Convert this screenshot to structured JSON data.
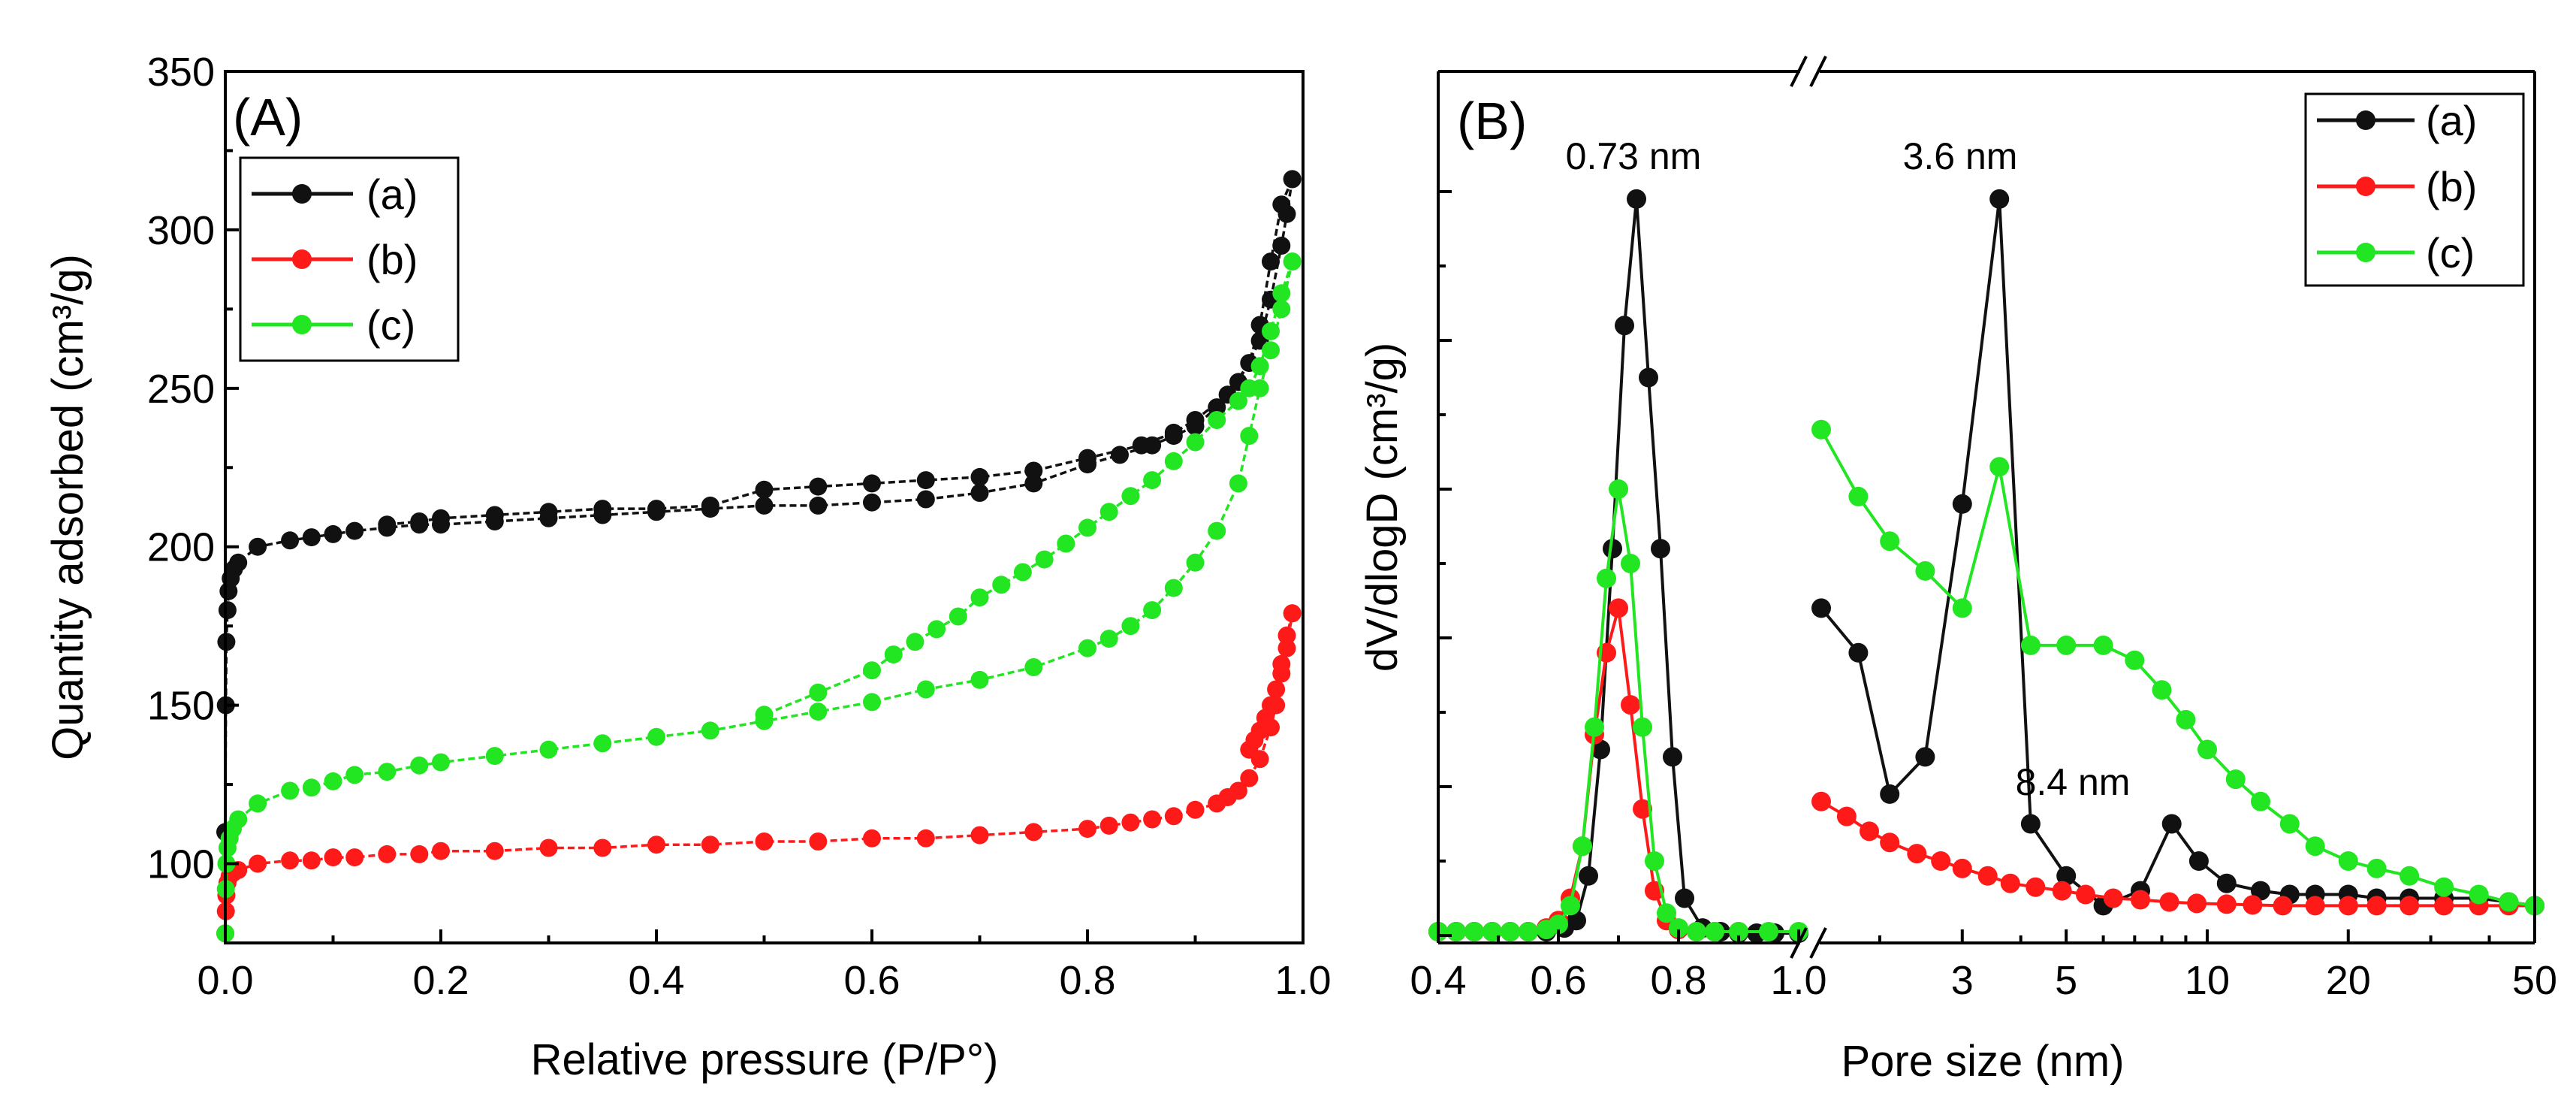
{
  "figure": {
    "panels": [
      "(A)",
      "(B)"
    ]
  },
  "colors": {
    "a": "#111111",
    "b": "#ff1a1a",
    "c": "#22e622"
  },
  "chart_data": [
    {
      "type": "line",
      "panel_label": "(A)",
      "title": "",
      "xlabel": "Relative pressure (P/P°)",
      "ylabel": "Quantity adsorbed (cm³/g)",
      "xlim": [
        0.0,
        1.0
      ],
      "ylim": [
        75,
        350
      ],
      "xticks": [
        0.0,
        0.2,
        0.4,
        0.6,
        0.8,
        1.0
      ],
      "xtick_labels": [
        "0.0",
        "0.2",
        "0.4",
        "0.6",
        "0.8",
        "1.0"
      ],
      "yticks": [
        100,
        150,
        200,
        250,
        300,
        350
      ],
      "ytick_labels": [
        "100",
        "150",
        "200",
        "250",
        "300",
        "350"
      ],
      "legend": {
        "position": "top-left",
        "entries": [
          "(a)",
          "(b)",
          "(c)"
        ]
      },
      "series": [
        {
          "name": "(a)",
          "branches": [
            {
              "x": [
                0.0,
                0.0005,
                0.001,
                0.002,
                0.003,
                0.005,
                0.008,
                0.012,
                0.03,
                0.06,
                0.08,
                0.1,
                0.12,
                0.15,
                0.18,
                0.2,
                0.25,
                0.3,
                0.35,
                0.4,
                0.45,
                0.5,
                0.55,
                0.6,
                0.65,
                0.7,
                0.75,
                0.8,
                0.83,
                0.86,
                0.88,
                0.9,
                0.92,
                0.94,
                0.96,
                0.97,
                0.98,
                0.985,
                0.99
              ],
              "y": [
                110,
                150,
                170,
                180,
                186,
                190,
                193,
                195,
                200,
                202,
                203,
                204,
                205,
                206,
                207,
                207,
                208,
                209,
                210,
                211,
                212,
                213,
                213,
                214,
                215,
                217,
                220,
                226,
                229,
                232,
                235,
                238,
                244,
                252,
                265,
                278,
                295,
                305,
                316
              ]
            },
            {
              "x": [
                0.99,
                0.98,
                0.97,
                0.96,
                0.95,
                0.93,
                0.9,
                0.88,
                0.85,
                0.8,
                0.75,
                0.7,
                0.65,
                0.6,
                0.55,
                0.5,
                0.45,
                0.4,
                0.35,
                0.3,
                0.25,
                0.2,
                0.18,
                0.15
              ],
              "y": [
                316,
                308,
                290,
                270,
                258,
                248,
                240,
                236,
                232,
                228,
                224,
                222,
                221,
                220,
                219,
                218,
                213,
                212,
                212,
                211,
                210,
                209,
                208,
                207
              ]
            }
          ]
        },
        {
          "name": "(b)",
          "branches": [
            {
              "x": [
                0.0,
                0.0005,
                0.001,
                0.002,
                0.004,
                0.007,
                0.012,
                0.03,
                0.06,
                0.08,
                0.1,
                0.12,
                0.15,
                0.18,
                0.2,
                0.25,
                0.3,
                0.35,
                0.4,
                0.45,
                0.5,
                0.55,
                0.6,
                0.65,
                0.7,
                0.75,
                0.8,
                0.82,
                0.84,
                0.86,
                0.88,
                0.9,
                0.92,
                0.93,
                0.94,
                0.95,
                0.96,
                0.97,
                0.975,
                0.98,
                0.985,
                0.99
              ],
              "y": [
                78,
                85,
                90,
                94,
                96,
                97,
                98,
                100,
                101,
                101,
                102,
                102,
                103,
                103,
                104,
                104,
                105,
                105,
                106,
                106,
                107,
                107,
                108,
                108,
                109,
                110,
                111,
                112,
                113,
                114,
                115,
                117,
                119,
                121,
                123,
                127,
                133,
                143,
                150,
                160,
                168,
                179
              ]
            },
            {
              "x": [
                0.99,
                0.985,
                0.98,
                0.975,
                0.97,
                0.965,
                0.96,
                0.955,
                0.95
              ],
              "y": [
                179,
                172,
                163,
                155,
                150,
                146,
                142,
                139,
                136
              ]
            }
          ]
        },
        {
          "name": "(c)",
          "branches": [
            {
              "x": [
                0.0,
                0.0005,
                0.001,
                0.002,
                0.004,
                0.007,
                0.012,
                0.03,
                0.06,
                0.08,
                0.1,
                0.12,
                0.15,
                0.18,
                0.2,
                0.25,
                0.3,
                0.35,
                0.4,
                0.45,
                0.5,
                0.55,
                0.6,
                0.65,
                0.7,
                0.75,
                0.8,
                0.82,
                0.84,
                0.86,
                0.88,
                0.9,
                0.92,
                0.94,
                0.95,
                0.96,
                0.97,
                0.98,
                0.99
              ],
              "y": [
                78,
                92,
                100,
                105,
                108,
                111,
                114,
                119,
                123,
                124,
                126,
                128,
                129,
                131,
                132,
                134,
                136,
                138,
                140,
                142,
                145,
                148,
                151,
                155,
                158,
                162,
                168,
                171,
                175,
                180,
                187,
                195,
                205,
                220,
                235,
                250,
                262,
                275,
                290
              ]
            },
            {
              "x": [
                0.99,
                0.98,
                0.97,
                0.96,
                0.95,
                0.94,
                0.92,
                0.9,
                0.88,
                0.86,
                0.84,
                0.82,
                0.8,
                0.78,
                0.76,
                0.74,
                0.72,
                0.7,
                0.68,
                0.66,
                0.64,
                0.62,
                0.6,
                0.55,
                0.5
              ],
              "y": [
                290,
                280,
                268,
                257,
                250,
                246,
                240,
                233,
                227,
                221,
                216,
                211,
                206,
                201,
                196,
                192,
                188,
                184,
                178,
                174,
                170,
                166,
                161,
                154,
                147
              ]
            }
          ]
        }
      ]
    },
    {
      "type": "line",
      "panel_label": "(B)",
      "title": "",
      "xlabel": "Pore size (nm)",
      "ylabel": "dV/dlogD (cm³/g)",
      "x_axis": "broken: linear 0.4–1.0 nm, then log 1.5–50 nm",
      "xlim_left": [
        0.4,
        1.0
      ],
      "xlim_right": [
        1.5,
        50
      ],
      "ylim": [
        0,
        1
      ],
      "xticks_left": [
        0.4,
        0.6,
        0.8,
        1.0
      ],
      "xtick_labels_left": [
        "0.4",
        "0.6",
        "0.8",
        "1.0"
      ],
      "xticks_right": [
        3,
        5,
        10,
        20,
        50
      ],
      "xtick_labels_right": [
        "3",
        "5",
        "10",
        "20",
        "50"
      ],
      "y_tick_labels_shown": false,
      "legend": {
        "position": "top-right",
        "entries": [
          "(a)",
          "(b)",
          "(c)"
        ]
      },
      "annotations": [
        {
          "text": "0.73 nm",
          "x": 0.73,
          "y": 1.0
        },
        {
          "text": "3.6 nm",
          "x": 3.6,
          "y": 1.0
        },
        {
          "text": "8.4 nm",
          "x": 8.4,
          "y": 0.17
        }
      ],
      "series": [
        {
          "name": "(a)",
          "left": {
            "x": [
              0.4,
              0.43,
              0.46,
              0.49,
              0.52,
              0.55,
              0.58,
              0.61,
              0.63,
              0.65,
              0.67,
              0.69,
              0.71,
              0.73,
              0.75,
              0.77,
              0.79,
              0.81,
              0.84,
              0.87,
              0.9,
              0.93,
              0.96,
              1.0
            ],
            "y": [
              0.005,
              0.005,
              0.005,
              0.005,
              0.005,
              0.005,
              0.005,
              0.01,
              0.02,
              0.08,
              0.25,
              0.52,
              0.82,
              0.99,
              0.75,
              0.52,
              0.24,
              0.05,
              0.01,
              0.005,
              0.003,
              0.003,
              0.003,
              0.003
            ]
          },
          "right": {
            "x": [
              1.5,
              1.8,
              2.1,
              2.5,
              3.0,
              3.6,
              4.2,
              5.0,
              6.0,
              7.2,
              8.4,
              9.6,
              11,
              13,
              15,
              17,
              20,
              23,
              27,
              32,
              38,
              44,
              50
            ],
            "y": [
              0.44,
              0.38,
              0.19,
              0.24,
              0.58,
              0.99,
              0.15,
              0.08,
              0.04,
              0.06,
              0.15,
              0.1,
              0.07,
              0.06,
              0.055,
              0.055,
              0.055,
              0.05,
              0.05,
              0.05,
              0.05,
              0.045,
              0.04
            ]
          }
        },
        {
          "name": "(b)",
          "left": {
            "x": [
              0.4,
              0.43,
              0.46,
              0.49,
              0.52,
              0.55,
              0.58,
              0.6,
              0.62,
              0.64,
              0.66,
              0.68,
              0.7,
              0.72,
              0.74,
              0.76,
              0.78,
              0.8,
              0.83,
              0.86,
              0.9
            ],
            "y": [
              0.005,
              0.005,
              0.005,
              0.005,
              0.005,
              0.005,
              0.01,
              0.02,
              0.05,
              0.12,
              0.27,
              0.38,
              0.44,
              0.31,
              0.17,
              0.06,
              0.02,
              0.008,
              0.005,
              0.005,
              0.005
            ]
          },
          "right": {
            "x": [
              1.5,
              1.7,
              1.9,
              2.1,
              2.4,
              2.7,
              3.0,
              3.4,
              3.8,
              4.3,
              4.9,
              5.5,
              6.3,
              7.2,
              8.3,
              9.5,
              11,
              12.5,
              14.5,
              17,
              20,
              23,
              27,
              32,
              38,
              44,
              50
            ],
            "y": [
              0.18,
              0.16,
              0.14,
              0.125,
              0.11,
              0.1,
              0.09,
              0.08,
              0.07,
              0.065,
              0.06,
              0.055,
              0.05,
              0.048,
              0.045,
              0.043,
              0.042,
              0.041,
              0.04,
              0.04,
              0.04,
              0.04,
              0.04,
              0.04,
              0.04,
              0.04,
              0.04
            ]
          }
        },
        {
          "name": "(c)",
          "left": {
            "x": [
              0.4,
              0.43,
              0.46,
              0.49,
              0.52,
              0.55,
              0.58,
              0.6,
              0.62,
              0.64,
              0.66,
              0.68,
              0.7,
              0.72,
              0.74,
              0.76,
              0.78,
              0.8,
              0.83,
              0.86,
              0.9,
              0.95,
              1.0
            ],
            "y": [
              0.005,
              0.005,
              0.005,
              0.005,
              0.005,
              0.005,
              0.008,
              0.015,
              0.04,
              0.12,
              0.28,
              0.48,
              0.6,
              0.5,
              0.28,
              0.1,
              0.03,
              0.01,
              0.005,
              0.005,
              0.005,
              0.005,
              0.005
            ]
          },
          "right": {
            "x": [
              1.5,
              1.8,
              2.1,
              2.5,
              3.0,
              3.6,
              4.2,
              5.0,
              6.0,
              7.0,
              8.0,
              9.0,
              10,
              11.5,
              13,
              15,
              17,
              20,
              23,
              27,
              32,
              38,
              44,
              50
            ],
            "y": [
              0.68,
              0.59,
              0.53,
              0.49,
              0.44,
              0.63,
              0.39,
              0.39,
              0.39,
              0.37,
              0.33,
              0.29,
              0.25,
              0.21,
              0.18,
              0.15,
              0.12,
              0.1,
              0.09,
              0.08,
              0.065,
              0.055,
              0.045,
              0.04
            ]
          }
        }
      ]
    }
  ]
}
